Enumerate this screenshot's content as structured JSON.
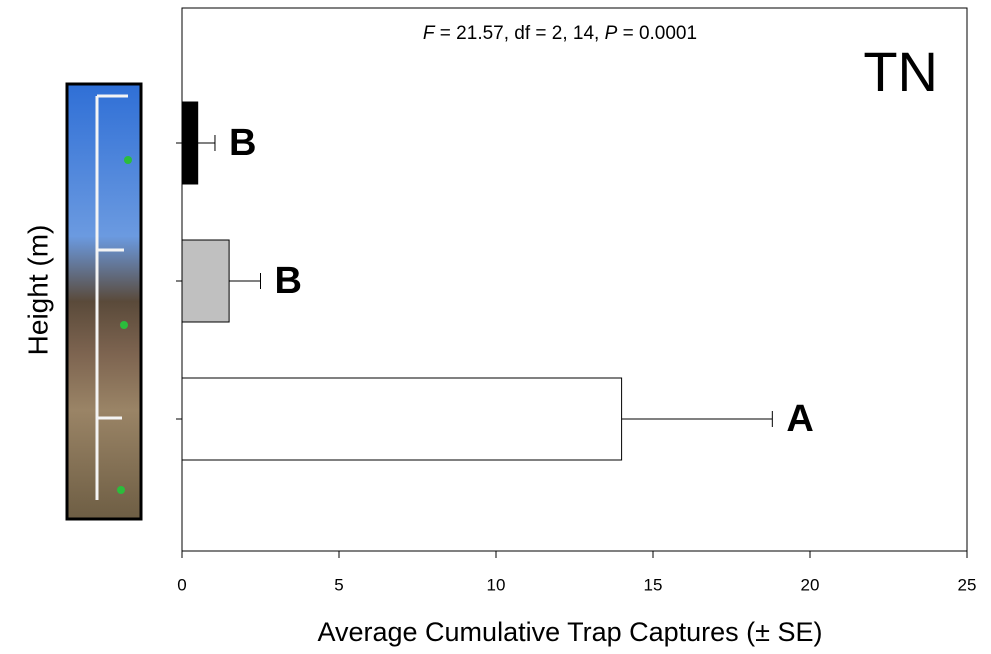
{
  "chart_data": {
    "type": "hbar",
    "annotation_parts": [
      "F",
      " = 21.57, df = 2, 14, ",
      "P",
      " = 0.0001"
    ],
    "panel_label": "TN",
    "y_label": "Height (m)",
    "x_label": "Average Cumulative Trap Captures (± SE)",
    "categories": [
      null,
      null,
      null
    ],
    "values": [
      0.5,
      1.5,
      14
    ],
    "errors": [
      0.55,
      1.0,
      4.8
    ],
    "letters": [
      "B",
      "B",
      "A"
    ],
    "colors": [
      "#000000",
      "#c0c0c0",
      "#ffffff"
    ],
    "xlim": [
      0,
      25
    ],
    "xticks": [
      0,
      5,
      10,
      15,
      20,
      25
    ]
  }
}
